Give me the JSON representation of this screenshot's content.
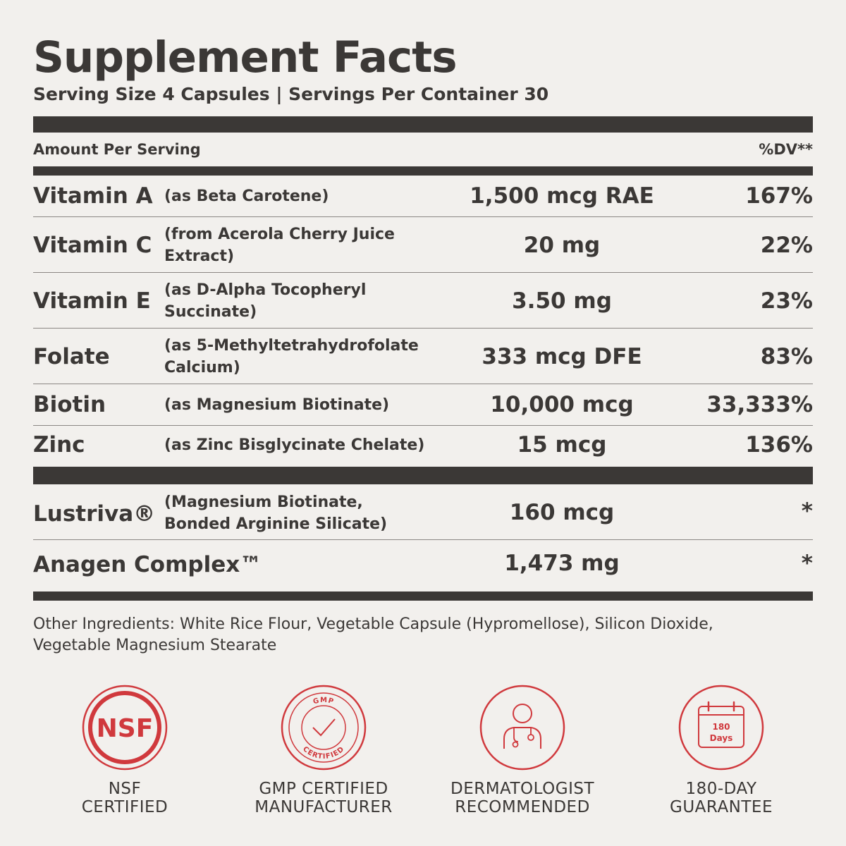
{
  "title": "Supplement Facts",
  "serving_line": "Serving Size 4 Capsules | Servings Per Container 30",
  "header": {
    "amount_per_serving": "Amount Per Serving",
    "dv": "%DV**"
  },
  "nutrients": [
    {
      "name": "Vitamin A",
      "source": "(as Beta Carotene)",
      "amount": "1,500 mcg RAE",
      "dv": "167%"
    },
    {
      "name": "Vitamin C",
      "source": "(from Acerola Cherry Juice Extract)",
      "amount": "20 mg",
      "dv": "22%"
    },
    {
      "name": "Vitamin E",
      "source": "(as D-Alpha Tocopheryl Succinate)",
      "amount": "3.50 mg",
      "dv": "23%"
    },
    {
      "name": "Folate",
      "source": "(as 5-Methyltetrahydrofolate Calcium)",
      "amount": "333 mcg DFE",
      "dv": "83%"
    },
    {
      "name": "Biotin",
      "source": "(as Magnesium Biotinate)",
      "amount": "10,000 mcg",
      "dv": "33,333%"
    },
    {
      "name": "Zinc",
      "source": "(as Zinc Bisglycinate Chelate)",
      "amount": "15 mcg",
      "dv": "136%"
    }
  ],
  "blends": [
    {
      "name": "Lustriva®",
      "source": "(Magnesium Biotinate, Bonded Arginine Silicate)",
      "amount": "160 mcg",
      "dv": "*"
    },
    {
      "name": "Anagen Complex™",
      "source": "",
      "amount": "1,473 mg",
      "dv": "*"
    }
  ],
  "other_ingredients": "Other Ingredients: White Rice Flour, Vegetable Capsule (Hypromellose), Silicon Dioxide, Vegetable Magnesium Stearate",
  "badges": [
    {
      "icon": "nsf-logo-icon",
      "text": "NSF",
      "label_line1": "NSF",
      "label_line2": "CERTIFIED"
    },
    {
      "icon": "gmp-checkmark-icon",
      "ring_top": "GMP",
      "ring_bottom": "CERTIFIED",
      "label_line1": "GMP CERTIFIED",
      "label_line2": "MANUFACTURER"
    },
    {
      "icon": "dermatologist-icon",
      "label_line1": "DERMATOLOGIST",
      "label_line2": "RECOMMENDED"
    },
    {
      "icon": "calendar-icon",
      "cal_line1": "180",
      "cal_line2": "Days",
      "label_line1": "180-DAY",
      "label_line2": "GUARANTEE"
    }
  ],
  "colors": {
    "text": "#3b3836",
    "accent": "#d0393d",
    "background": "#f2f0ed"
  }
}
